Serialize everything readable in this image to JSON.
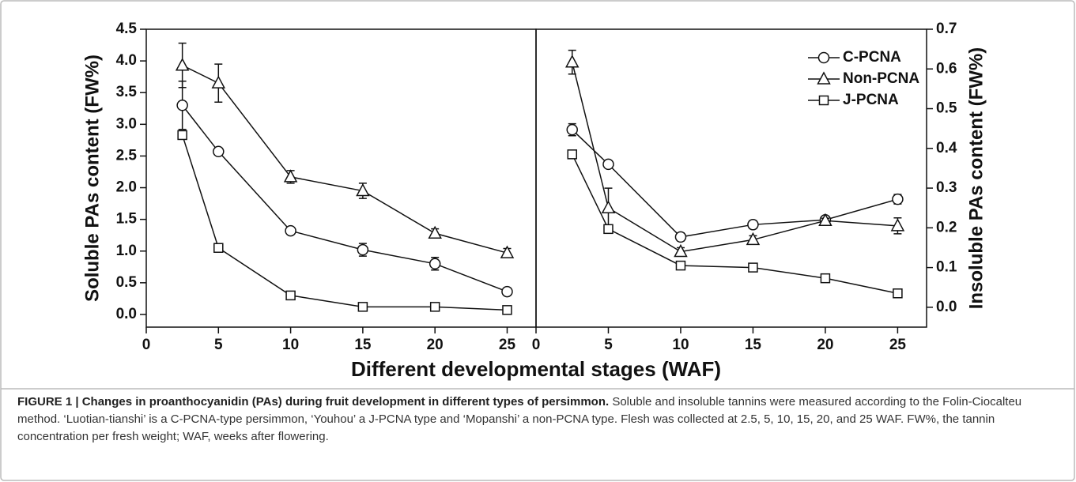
{
  "chart_data": [
    {
      "type": "line",
      "ylabel": "Soluble PAs content (FW%)",
      "xlabel": "Different developmental stages (WAF)",
      "x": [
        2.5,
        5,
        10,
        15,
        20,
        25
      ],
      "xlim": [
        0,
        27
      ],
      "xticks": [
        0,
        5,
        10,
        15,
        20,
        25
      ],
      "ylim": [
        -0.2,
        4.5
      ],
      "yticks": [
        {
          "value": 0,
          "label": "0.0"
        },
        0.5,
        {
          "value": 1,
          "label": "1.0"
        },
        1.5,
        {
          "value": 2,
          "label": "2.0"
        },
        2.5,
        {
          "value": 3,
          "label": "3.0"
        },
        3.5,
        {
          "value": 4,
          "label": "4.0"
        },
        4.5
      ],
      "series": [
        {
          "name": "C-PCNA",
          "marker": "circle",
          "color": "#111111",
          "values": [
            3.3,
            2.57,
            1.32,
            1.02,
            0.8,
            0.36
          ],
          "errors": [
            0.38,
            0.03,
            0.03,
            0.1,
            0.1,
            0.06
          ]
        },
        {
          "name": "Non-PCNA",
          "marker": "triangle",
          "color": "#111111",
          "values": [
            3.93,
            3.65,
            2.17,
            1.95,
            1.28,
            0.97
          ],
          "errors": [
            0.35,
            0.3,
            0.1,
            0.12,
            0.07,
            0.07
          ]
        },
        {
          "name": "J-PCNA",
          "marker": "square",
          "color": "#111111",
          "values": [
            2.83,
            1.05,
            0.3,
            0.12,
            0.12,
            0.07
          ],
          "errors": [
            0.03,
            0.03,
            0.02,
            0.02,
            0.02,
            0.02
          ]
        }
      ]
    },
    {
      "type": "line",
      "y2label": "Insoluble PAs content (FW%)",
      "legend": "upper right",
      "x": [
        2.5,
        5,
        10,
        15,
        20,
        25
      ],
      "xlim": [
        0,
        27
      ],
      "xticks": [
        0,
        5,
        10,
        15,
        20,
        25
      ],
      "y2lim": [
        -0.05,
        0.7
      ],
      "y2ticks": [
        {
          "value": 0,
          "label": "0.0"
        },
        0.1,
        0.2,
        0.3,
        0.4,
        0.5,
        0.6,
        0.7
      ],
      "series": [
        {
          "name": "C-PCNA",
          "marker": "circle",
          "color": "#111111",
          "axis": "y2",
          "values": [
            0.447,
            0.36,
            0.177,
            0.208,
            0.22,
            0.272
          ],
          "errors": [
            0.015,
            0.007,
            0.01,
            0.01,
            0.005,
            0.012
          ]
        },
        {
          "name": "Non-PCNA",
          "marker": "triangle",
          "color": "#111111",
          "axis": "y2",
          "values": [
            0.617,
            0.25,
            0.14,
            0.17,
            0.218,
            0.205
          ],
          "errors": [
            0.03,
            0.05,
            0.01,
            0.01,
            0.006,
            0.02
          ]
        },
        {
          "name": "J-PCNA",
          "marker": "square",
          "color": "#111111",
          "axis": "y2",
          "values": [
            0.385,
            0.197,
            0.105,
            0.1,
            0.073,
            0.035
          ],
          "errors": [
            0.005,
            0.008,
            0.01,
            0.01,
            0.005,
            0.003
          ]
        }
      ]
    }
  ],
  "caption": {
    "title": "FIGURE 1 | Changes in proanthocyanidin (PAs) during fruit development in different types of persimmon.",
    "text": "Soluble and insoluble tannins were measured according to the Folin-Ciocalteu method. ‘Luotian-tianshi’ is a C-PCNA-type persimmon, ‘Youhou’ a J-PCNA type and ‘Mopanshi’ a non-PCNA type. Flesh was collected at 2.5, 5, 10, 15, 20, and 25 WAF. FW%, the tannin concentration per fresh weight; WAF, weeks after flowering."
  }
}
